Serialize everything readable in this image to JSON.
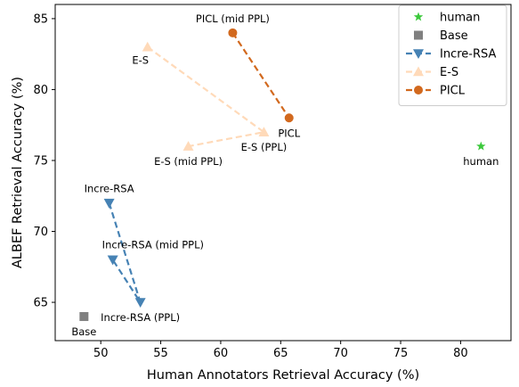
{
  "chart_data": {
    "type": "scatter",
    "xlabel": "Human Annotators Retrieval Accuracy (%)",
    "ylabel": "ALBEF Retrieval Accuracy (%)",
    "xlim": [
      46.2,
      84.2
    ],
    "ylim": [
      62.3,
      86.0
    ],
    "xticks": [
      50,
      55,
      60,
      65,
      70,
      75,
      80
    ],
    "yticks": [
      65,
      70,
      75,
      80,
      85
    ],
    "grid": false,
    "legend_position": "top-right",
    "series": [
      {
        "name": "human",
        "color": "#3cc93c",
        "marker": "star",
        "connected": false,
        "points": [
          {
            "x": 81.7,
            "y": 76.0,
            "label": "human",
            "label_pos": "below"
          }
        ]
      },
      {
        "name": "Base",
        "color": "#808080",
        "marker": "square",
        "connected": false,
        "points": [
          {
            "x": 48.6,
            "y": 64.0,
            "label": "Base",
            "label_pos": "below"
          }
        ]
      },
      {
        "name": "Incre-RSA",
        "color": "#4682b4",
        "marker": "triangle-down",
        "connected": true,
        "points": [
          {
            "x": 50.7,
            "y": 72.0,
            "label": "Incre-RSA",
            "label_pos": "above"
          },
          {
            "x": 53.3,
            "y": 65.0,
            "label": "Incre-RSA (PPL)",
            "label_pos": "below"
          },
          {
            "x": 51.0,
            "y": 68.0,
            "label": "Incre-RSA (mid PPL)",
            "label_pos": "above-right"
          }
        ]
      },
      {
        "name": "E-S",
        "color": "#ffdab9",
        "marker": "triangle-up",
        "connected": true,
        "points": [
          {
            "x": 53.9,
            "y": 83.0,
            "label": "E-S",
            "label_pos": "below-left"
          },
          {
            "x": 63.6,
            "y": 77.0,
            "label": "E-S (PPL)",
            "label_pos": "below"
          },
          {
            "x": 57.3,
            "y": 76.0,
            "label": "E-S (mid PPL)",
            "label_pos": "below"
          }
        ]
      },
      {
        "name": "PICL",
        "color": "#d2691e",
        "marker": "circle",
        "connected": true,
        "points": [
          {
            "x": 61.0,
            "y": 84.0,
            "label": "PICL (mid PPL)",
            "label_pos": "above"
          },
          {
            "x": 65.7,
            "y": 78.0,
            "label": "PICL",
            "label_pos": "below"
          }
        ]
      }
    ]
  }
}
